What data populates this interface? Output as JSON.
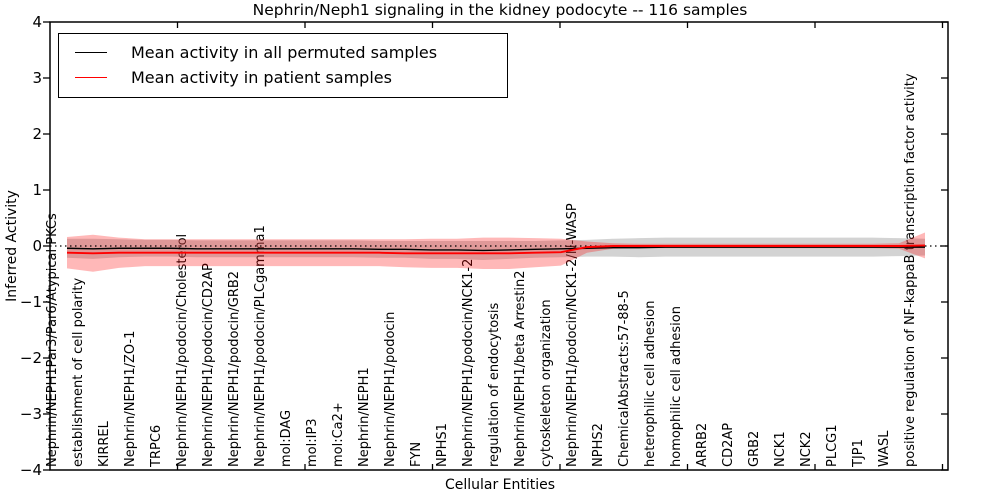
{
  "title": "Nephrin/Neph1 signaling in the kidney podocyte -- 116 samples",
  "axes": {
    "x_label": "Cellular Entities",
    "y_label": "Inferred Activity"
  },
  "legend": {
    "entries": [
      {
        "label": "Mean activity in all permuted samples",
        "color": "#000000"
      },
      {
        "label": "Mean activity in patient samples",
        "color": "#ff0000"
      }
    ]
  },
  "chart_data": {
    "type": "line",
    "title": "Nephrin/Neph1 signaling in the kidney podocyte -- 116 samples",
    "xlabel": "Cellular Entities",
    "ylabel": "Inferred Activity",
    "ylim": [
      -4,
      4
    ],
    "yticks": [
      -4,
      -3,
      -2,
      -1,
      0,
      1,
      2,
      3,
      4
    ],
    "zero_reference_line": 0,
    "grid": false,
    "legend_position": "upper left",
    "categories": [
      "Nephrin/NEPH1Par3/Par6/Atypical PKCs",
      "establishment of cell polarity",
      "KIRREL",
      "Nephrin/NEPH1/ZO-1",
      "TRPC6",
      "Nephrin/NEPH1/podocin/Cholesterol",
      "Nephrin/NEPH1/podocin/CD2AP",
      "Nephrin/NEPH1/podocin/GRB2",
      "Nephrin/NEPH1/podocin/PLCgamma1",
      "mol:DAG",
      "mol:IP3",
      "mol:Ca2+",
      "Nephrin/NEPH1",
      "Nephrin/NEPH1/podocin",
      "FYN",
      "NPHS1",
      "Nephrin/NEPH1/podocin/NCK1-2",
      "regulation of endocytosis",
      "Nephrin/NEPH1/beta Arrestin2",
      "cytoskeleton organization",
      "Nephrin/NEPH1/podocin/NCK1-2/N-WASP",
      "NPHS2",
      "ChemicalAbstracts:57-88-5",
      "heterophilic cell adhesion",
      "homophilic cell adhesion",
      "ARRB2",
      "CD2AP",
      "GRB2",
      "NCK1",
      "NCK2",
      "PLCG1",
      "TJP1",
      "WASL",
      "positive regulation of NF-kappaB transcription factor activity"
    ],
    "series": [
      {
        "name": "Mean activity in all permuted samples",
        "color": "#000000",
        "band_color": "rgba(128,128,128,0.35)",
        "mean": [
          -0.04,
          -0.05,
          -0.04,
          -0.04,
          -0.04,
          -0.05,
          -0.05,
          -0.05,
          -0.05,
          -0.05,
          -0.05,
          -0.05,
          -0.06,
          -0.06,
          -0.07,
          -0.07,
          -0.08,
          -0.07,
          -0.06,
          -0.05,
          -0.04,
          -0.03,
          -0.03,
          -0.02,
          -0.02,
          -0.02,
          -0.02,
          -0.02,
          -0.02,
          -0.02,
          -0.02,
          -0.02,
          -0.02,
          -0.02
        ],
        "std": [
          0.17,
          0.18,
          0.16,
          0.15,
          0.15,
          0.15,
          0.15,
          0.15,
          0.15,
          0.15,
          0.15,
          0.15,
          0.15,
          0.15,
          0.16,
          0.16,
          0.17,
          0.16,
          0.15,
          0.15,
          0.15,
          0.16,
          0.17,
          0.17,
          0.17,
          0.17,
          0.17,
          0.17,
          0.17,
          0.17,
          0.17,
          0.17,
          0.16,
          0.15
        ]
      },
      {
        "name": "Mean activity in patient samples",
        "color": "#ff0000",
        "band_color": "rgba(255,0,0,0.28)",
        "mean": [
          -0.12,
          -0.13,
          -0.12,
          -0.12,
          -0.12,
          -0.12,
          -0.12,
          -0.12,
          -0.12,
          -0.12,
          -0.12,
          -0.12,
          -0.12,
          -0.13,
          -0.13,
          -0.13,
          -0.13,
          -0.13,
          -0.12,
          -0.11,
          -0.02,
          0.0,
          0.0,
          0.0,
          0.0,
          0.0,
          0.0,
          0.0,
          0.0,
          0.0,
          0.0,
          0.0,
          0.0,
          0.01
        ],
        "std": [
          0.28,
          0.33,
          0.27,
          0.24,
          0.24,
          0.24,
          0.24,
          0.24,
          0.24,
          0.24,
          0.24,
          0.24,
          0.24,
          0.25,
          0.26,
          0.26,
          0.28,
          0.28,
          0.26,
          0.24,
          0.1,
          0.05,
          0.04,
          0.04,
          0.04,
          0.04,
          0.04,
          0.04,
          0.04,
          0.04,
          0.04,
          0.04,
          0.05,
          0.23
        ]
      }
    ]
  }
}
